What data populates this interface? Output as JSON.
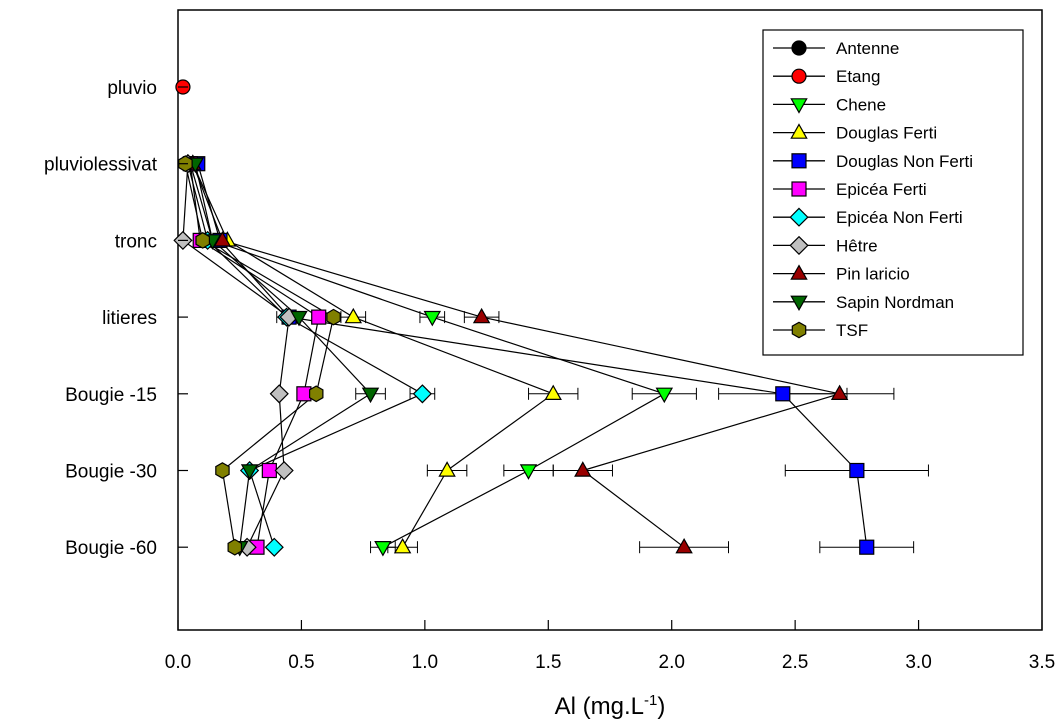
{
  "chart_data": {
    "type": "scatter",
    "xlabel_main": "Al (mg.L",
    "xlabel_sup": "-1",
    "xlabel_end": ")",
    "xlim": [
      0,
      3.5
    ],
    "xticks": [
      "0.0",
      "0.5",
      "1.0",
      "1.5",
      "2.0",
      "2.5",
      "3.0",
      "3.5"
    ],
    "xtick_values": [
      0,
      0.5,
      1.0,
      1.5,
      2.0,
      2.5,
      3.0,
      3.5
    ],
    "categories": [
      "pluvio",
      "pluviolessivat",
      "tronc",
      "litieres",
      "Bougie -15",
      "Bougie -30",
      "Bougie -60"
    ],
    "legend_position": "top-right",
    "grid": false,
    "series": [
      {
        "name": "Antenne",
        "marker": "circle",
        "color": "#000000",
        "values": [
          null,
          null,
          null,
          null,
          null,
          null,
          null
        ],
        "errors": null
      },
      {
        "name": "Etang",
        "marker": "circle",
        "color": "#ff0000",
        "values": [
          0.02,
          null,
          null,
          null,
          null,
          null,
          null
        ],
        "errors": null
      },
      {
        "name": "Chene",
        "marker": "triangle-down",
        "color": "#00ff00",
        "values": [
          null,
          0.05,
          0.14,
          1.03,
          1.97,
          1.42,
          0.83
        ],
        "errors": [
          0,
          0,
          0,
          0.05,
          0.13,
          0.1,
          0.05
        ]
      },
      {
        "name": "Douglas Ferti",
        "marker": "triangle-up",
        "color": "#ffff00",
        "values": [
          null,
          0.06,
          0.2,
          0.71,
          1.52,
          1.09,
          0.91
        ],
        "errors": [
          0,
          0,
          0,
          0.05,
          0.1,
          0.08,
          0.06
        ]
      },
      {
        "name": "Douglas Non Ferti",
        "marker": "square",
        "color": "#0000ff",
        "values": [
          null,
          0.08,
          0.17,
          0.45,
          2.45,
          2.75,
          2.79
        ],
        "errors": [
          0,
          0,
          0,
          0,
          0.26,
          0.29,
          0.19
        ]
      },
      {
        "name": "Epicéa Ferti",
        "marker": "square",
        "color": "#ff00ff",
        "values": [
          null,
          0.05,
          0.09,
          0.57,
          0.51,
          0.37,
          0.32
        ],
        "errors": null
      },
      {
        "name": "Epicéa Non Ferti",
        "marker": "diamond",
        "color": "#00ffff",
        "values": [
          null,
          0.04,
          0.12,
          0.44,
          0.99,
          0.29,
          0.39
        ],
        "errors": [
          0,
          0,
          0,
          0.04,
          0.05,
          0,
          0
        ]
      },
      {
        "name": "Hêtre",
        "marker": "diamond",
        "color": "#c0c0c0",
        "values": [
          null,
          0.04,
          0.02,
          0.45,
          0.41,
          0.43,
          0.28
        ],
        "errors": null
      },
      {
        "name": "Pin laricio",
        "marker": "triangle-up",
        "color": "#990000",
        "values": [
          null,
          0.06,
          0.18,
          1.23,
          2.68,
          1.64,
          2.05
        ],
        "errors": [
          0,
          0,
          0,
          0.07,
          0.22,
          0.12,
          0.18
        ]
      },
      {
        "name": "Sapin Nordman",
        "marker": "triangle-down",
        "color": "#006600",
        "values": [
          null,
          0.07,
          0.14,
          0.49,
          0.78,
          0.29,
          0.25
        ],
        "errors": [
          0,
          0,
          0,
          0,
          0.06,
          0,
          0
        ]
      },
      {
        "name": "TSF",
        "marker": "hexagon",
        "color": "#808000",
        "values": [
          null,
          0.03,
          0.1,
          0.63,
          0.56,
          0.18,
          0.23
        ],
        "errors": null
      }
    ]
  }
}
